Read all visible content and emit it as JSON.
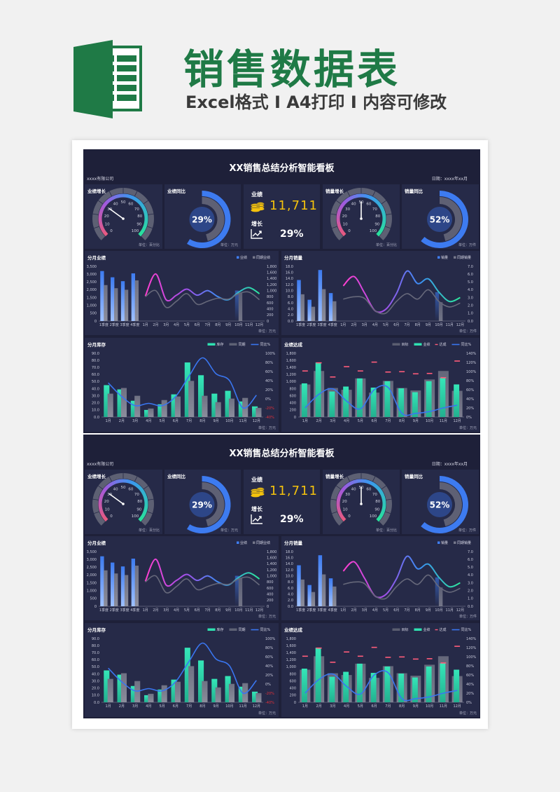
{
  "header": {
    "logo_letter": "X",
    "title": "销售数据表",
    "subtitle": "Excel格式 I A4打印 I 内容可修改"
  },
  "dashboard": {
    "title": "XX销售总结分析智能看板",
    "company": "xxxx有限公司",
    "date": "日期：xxxx年xx月",
    "gauges": [
      {
        "title": "业绩增长",
        "value": 30,
        "unit": "单位：百分比",
        "ticks": [
          "0",
          "10",
          "20",
          "30",
          "40",
          "50",
          "60",
          "70",
          "80",
          "90",
          "100"
        ]
      },
      {
        "title": "销量增长",
        "value": 50,
        "unit": "单位：百分比",
        "ticks": [
          "0",
          "10",
          "20",
          "30",
          "40",
          "50",
          "60",
          "70",
          "80",
          "90",
          "100"
        ]
      }
    ],
    "donuts": [
      {
        "title": "业绩同比",
        "label": "29%",
        "value": 0.29,
        "unit": "单位：万元"
      },
      {
        "title": "销量同比",
        "label": "52%",
        "value": 0.52,
        "unit": "单位：万件"
      }
    ],
    "kpi": {
      "sales_label": "业绩",
      "sales_value": "11,711",
      "growth_label": "增长",
      "growth_value": "29%",
      "sales_icon": "coins-icon",
      "growth_icon": "trend-chart-icon",
      "value_color": "#f4c20d"
    }
  },
  "chart_data": [
    {
      "type": "bar",
      "title": "分月业绩",
      "unit": "单位：万元",
      "categories": [
        "1季度",
        "2季度",
        "3季度",
        "4季度",
        "1月",
        "2月",
        "3月",
        "4月",
        "5月",
        "6月",
        "7月",
        "8月",
        "9月",
        "10月",
        "11月",
        "12月"
      ],
      "y_left_range": [
        0,
        3500
      ],
      "y_left_ticks": [
        "0",
        "500",
        "1,000",
        "1,500",
        "2,000",
        "2,500",
        "3,000",
        "3,500"
      ],
      "y_right_range": [
        0,
        1800
      ],
      "y_right_ticks": [
        "0",
        "200",
        "400",
        "600",
        "800",
        "1,000",
        "1,200",
        "1,400",
        "1,600",
        "1,800"
      ],
      "legend": [
        {
          "label": "业绩",
          "color": "#3f7ef5"
        },
        {
          "label": "同期业绩",
          "color": "#75778a"
        }
      ],
      "series": [
        {
          "name": "业绩",
          "type": "bar",
          "axis": "left",
          "color": "#3f7ef5",
          "values": [
            3200,
            2800,
            2550,
            3050,
            null,
            null,
            null,
            null,
            null,
            null,
            null,
            null,
            null,
            1950,
            null,
            null
          ]
        },
        {
          "name": "同期业绩",
          "type": "bar",
          "axis": "left",
          "color": "#75778a",
          "values": [
            2300,
            2100,
            2000,
            2600,
            null,
            null,
            null,
            null,
            null,
            null,
            null,
            null,
            null,
            1800,
            null,
            null
          ]
        },
        {
          "name": "业绩(月)",
          "type": "line",
          "axis": "right",
          "color": "gradient",
          "values": [
            null,
            null,
            null,
            null,
            820,
            1550,
            700,
            850,
            1050,
            850,
            1000,
            800,
            700,
            950,
            1100,
            900
          ]
        },
        {
          "name": "同期业绩(月)",
          "type": "line",
          "axis": "right",
          "color": "#66687a",
          "values": [
            null,
            null,
            null,
            null,
            800,
            1000,
            450,
            650,
            900,
            550,
            650,
            750,
            720,
            900,
            950,
            700
          ]
        }
      ]
    },
    {
      "type": "bar",
      "title": "分月销量",
      "unit": "单位：万件",
      "categories": [
        "1季度",
        "2季度",
        "3季度",
        "4季度",
        "1月",
        "2月",
        "3月",
        "4月",
        "5月",
        "6月",
        "7月",
        "8月",
        "9月",
        "10月",
        "11月",
        "12月"
      ],
      "y_left_range": [
        0,
        18
      ],
      "y_left_ticks": [
        "0.0",
        "2.0",
        "4.0",
        "6.0",
        "8.0",
        "10.0",
        "12.0",
        "14.0",
        "16.0",
        "18.0"
      ],
      "y_right_range": [
        0,
        7
      ],
      "y_right_ticks": [
        "0.0",
        "1.0",
        "2.0",
        "3.0",
        "4.0",
        "5.0",
        "6.0",
        "7.0"
      ],
      "legend": [
        {
          "label": "销量",
          "color": "#3f7ef5"
        },
        {
          "label": "同期销量",
          "color": "#75778a"
        }
      ],
      "series": [
        {
          "name": "销量",
          "type": "bar",
          "axis": "left",
          "color": "#3f7ef5",
          "values": [
            13.5,
            7.0,
            16.8,
            9.2,
            null,
            null,
            null,
            null,
            null,
            null,
            null,
            null,
            null,
            9.5,
            null,
            null
          ]
        },
        {
          "name": "同期销量",
          "type": "bar",
          "axis": "left",
          "color": "#75778a",
          "values": [
            8.8,
            4.7,
            10.5,
            6.5,
            null,
            null,
            null,
            null,
            null,
            null,
            null,
            null,
            null,
            6.2,
            null,
            null
          ]
        },
        {
          "name": "销量(月)",
          "type": "line",
          "axis": "right",
          "color": "gradient",
          "values": [
            null,
            null,
            null,
            null,
            4.5,
            5.7,
            3.6,
            1.3,
            1.5,
            3.5,
            6.4,
            4.8,
            5.4,
            3.7,
            2.5,
            3.0
          ]
        },
        {
          "name": "同期销量(月)",
          "type": "line",
          "axis": "right",
          "color": "#66687a",
          "values": [
            null,
            null,
            null,
            null,
            2.8,
            3.1,
            2.9,
            1.3,
            1.0,
            2.5,
            3.5,
            2.8,
            4.0,
            2.5,
            1.8,
            2.3
          ]
        }
      ]
    },
    {
      "type": "bar",
      "title": "分月库存",
      "unit": "单位：万元",
      "categories": [
        "1月",
        "2月",
        "3月",
        "4月",
        "5月",
        "6月",
        "7月",
        "8月",
        "9月",
        "10月",
        "11月",
        "12月"
      ],
      "y_left_range": [
        0,
        90
      ],
      "y_left_ticks": [
        "0.0",
        "10.0",
        "20.0",
        "30.0",
        "40.0",
        "50.0",
        "60.0",
        "70.0",
        "80.0",
        "90.0"
      ],
      "y_right_range": [
        -40,
        100
      ],
      "y_right_ticks": [
        "-40%",
        "-20%",
        "0%",
        "20%",
        "40%",
        "60%",
        "80%",
        "100%"
      ],
      "legend": [
        {
          "label": "库存",
          "color": "#2fe0b0"
        },
        {
          "label": "同期",
          "color": "#5e6275"
        },
        {
          "label": "同比%",
          "color": "#3a76f0",
          "line": true
        }
      ],
      "series": [
        {
          "name": "库存",
          "type": "bar",
          "axis": "left",
          "color": "#2fe0b0",
          "values": [
            45,
            39,
            23,
            10,
            18,
            32,
            77,
            59,
            33,
            37,
            22,
            15
          ]
        },
        {
          "name": "同期",
          "type": "bar",
          "axis": "left",
          "color": "#5e6275",
          "values": [
            33,
            41,
            30,
            12,
            24,
            29,
            51,
            30,
            21,
            26,
            27,
            13
          ]
        },
        {
          "name": "同比%",
          "type": "line",
          "axis": "right",
          "color": "#3a76f0",
          "values": [
            35,
            5,
            -15,
            -10,
            -15,
            5,
            50,
            90,
            55,
            40,
            -20,
            8
          ]
        }
      ]
    },
    {
      "type": "bar",
      "title": "业绩达成",
      "unit": "单位：万元",
      "categories": [
        "1月",
        "2月",
        "3月",
        "4月",
        "5月",
        "6月",
        "7月",
        "8月",
        "9月",
        "10月",
        "11月",
        "12月"
      ],
      "y_left_range": [
        0,
        1800
      ],
      "y_left_ticks": [
        "0",
        "200",
        "400",
        "600",
        "800",
        "1,000",
        "1,200",
        "1,400",
        "1,600",
        "1,800"
      ],
      "y_right_range": [
        0,
        140
      ],
      "y_right_ticks": [
        "0%",
        "20%",
        "40%",
        "60%",
        "80%",
        "100%",
        "120%",
        "140%"
      ],
      "legend": [
        {
          "label": "目标",
          "color": "#5a5d70"
        },
        {
          "label": "业绩",
          "color": "#2fe0b0"
        },
        {
          "label": "达成",
          "color": "#ff5c7a",
          "dash": true
        },
        {
          "label": "同比%",
          "color": "#3a76f0",
          "line": true
        }
      ],
      "series": [
        {
          "name": "目标",
          "type": "bar",
          "axis": "left",
          "color": "#5a5d70",
          "values": [
            920,
            1300,
            820,
            770,
            1090,
            690,
            1020,
            820,
            750,
            1060,
            1300,
            740
          ]
        },
        {
          "name": "业绩",
          "type": "bar",
          "axis": "left",
          "color": "#2fe0b0",
          "values": [
            950,
            1540,
            720,
            860,
            1090,
            830,
            1010,
            810,
            700,
            1010,
            1100,
            920
          ]
        },
        {
          "name": "达成",
          "type": "marker",
          "axis": "left",
          "color": "#ff5c7a",
          "values": [
            1300,
            1530,
            1130,
            1420,
            1300,
            1550,
            1270,
            1280,
            1220,
            1230,
            1110,
            1580
          ]
        },
        {
          "name": "同比%",
          "type": "line",
          "axis": "right",
          "color": "#3a76f0",
          "values": [
            20,
            50,
            62,
            35,
            18,
            60,
            65,
            8,
            8,
            12,
            20,
            26
          ]
        }
      ]
    }
  ]
}
